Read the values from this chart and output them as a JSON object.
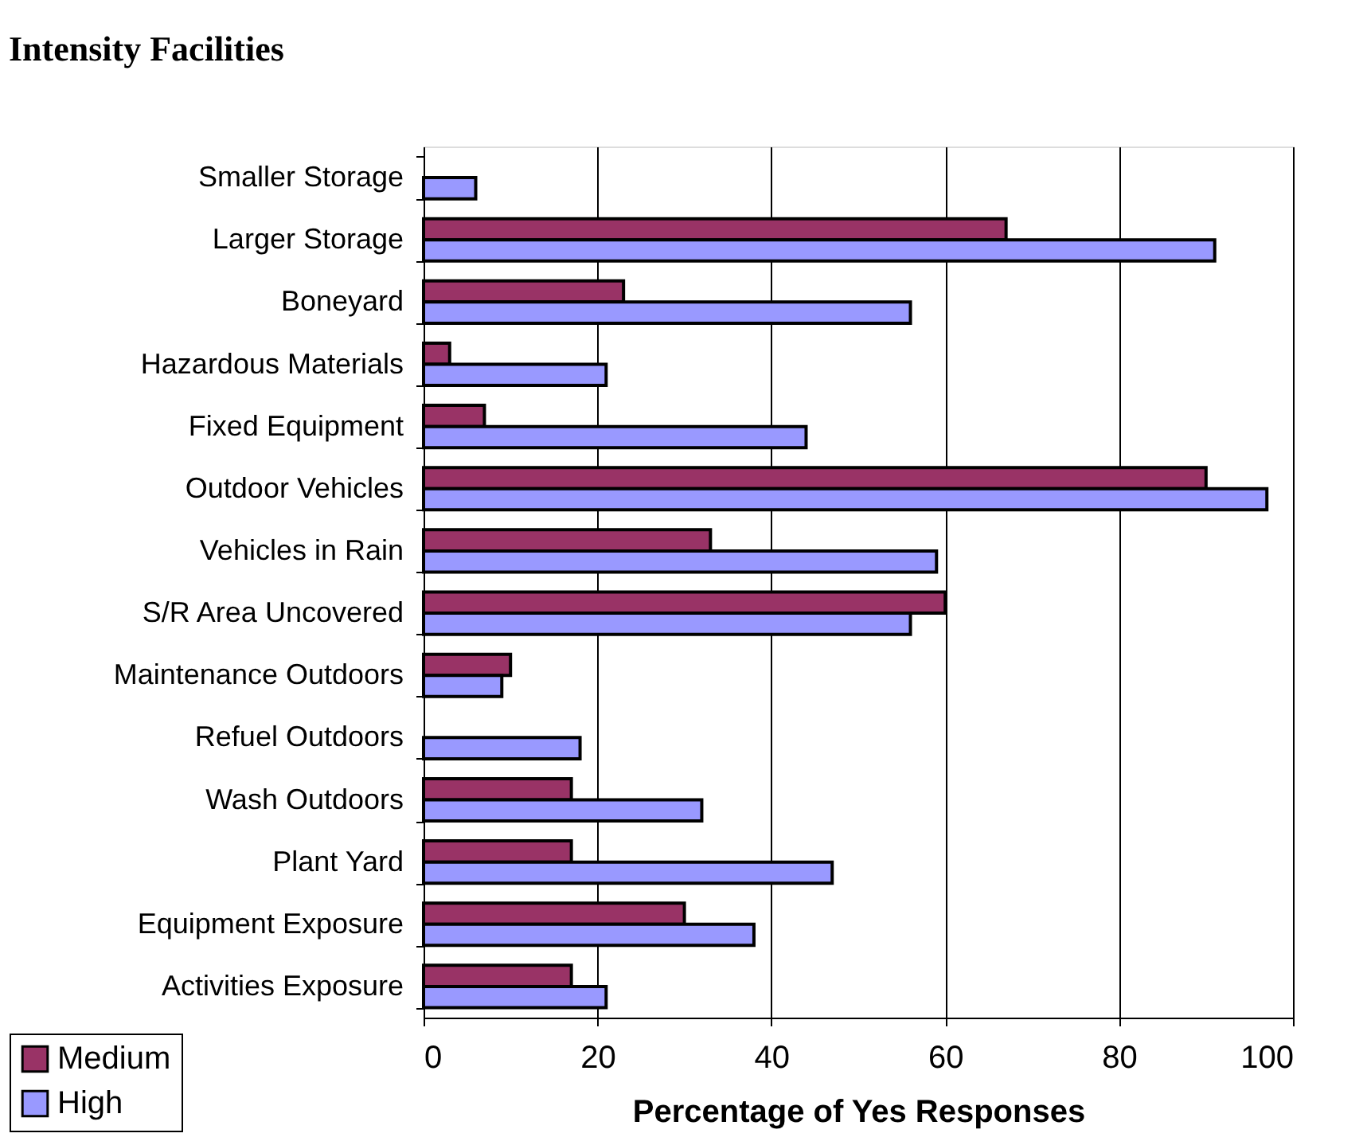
{
  "chart_data": {
    "type": "bar",
    "orientation": "horizontal",
    "title": "Intensity Facilities",
    "xlabel": "Percentage of Yes Responses",
    "categories": [
      "Smaller Storage",
      "Larger Storage",
      "Boneyard",
      "Hazardous Materials",
      "Fixed Equipment",
      "Outdoor Vehicles",
      "Vehicles in Rain",
      "S/R Area Uncovered",
      "Maintenance Outdoors",
      "Refuel Outdoors",
      "Wash Outdoors",
      "Plant Yard",
      "Equipment Exposure",
      "Activities Exposure"
    ],
    "series": [
      {
        "name": "Medium",
        "color": "#993366",
        "values": [
          null,
          67,
          23,
          3,
          7,
          90,
          33,
          60,
          10,
          null,
          17,
          17,
          30,
          17
        ]
      },
      {
        "name": "High",
        "color": "#9999ff",
        "values": [
          6,
          91,
          56,
          21,
          44,
          97,
          59,
          56,
          9,
          18,
          32,
          47,
          38,
          21
        ]
      }
    ],
    "xlim": [
      0,
      100
    ],
    "xticks": [
      0,
      20,
      40,
      60,
      80,
      100
    ],
    "grid": "x",
    "legend": "bottom left"
  }
}
